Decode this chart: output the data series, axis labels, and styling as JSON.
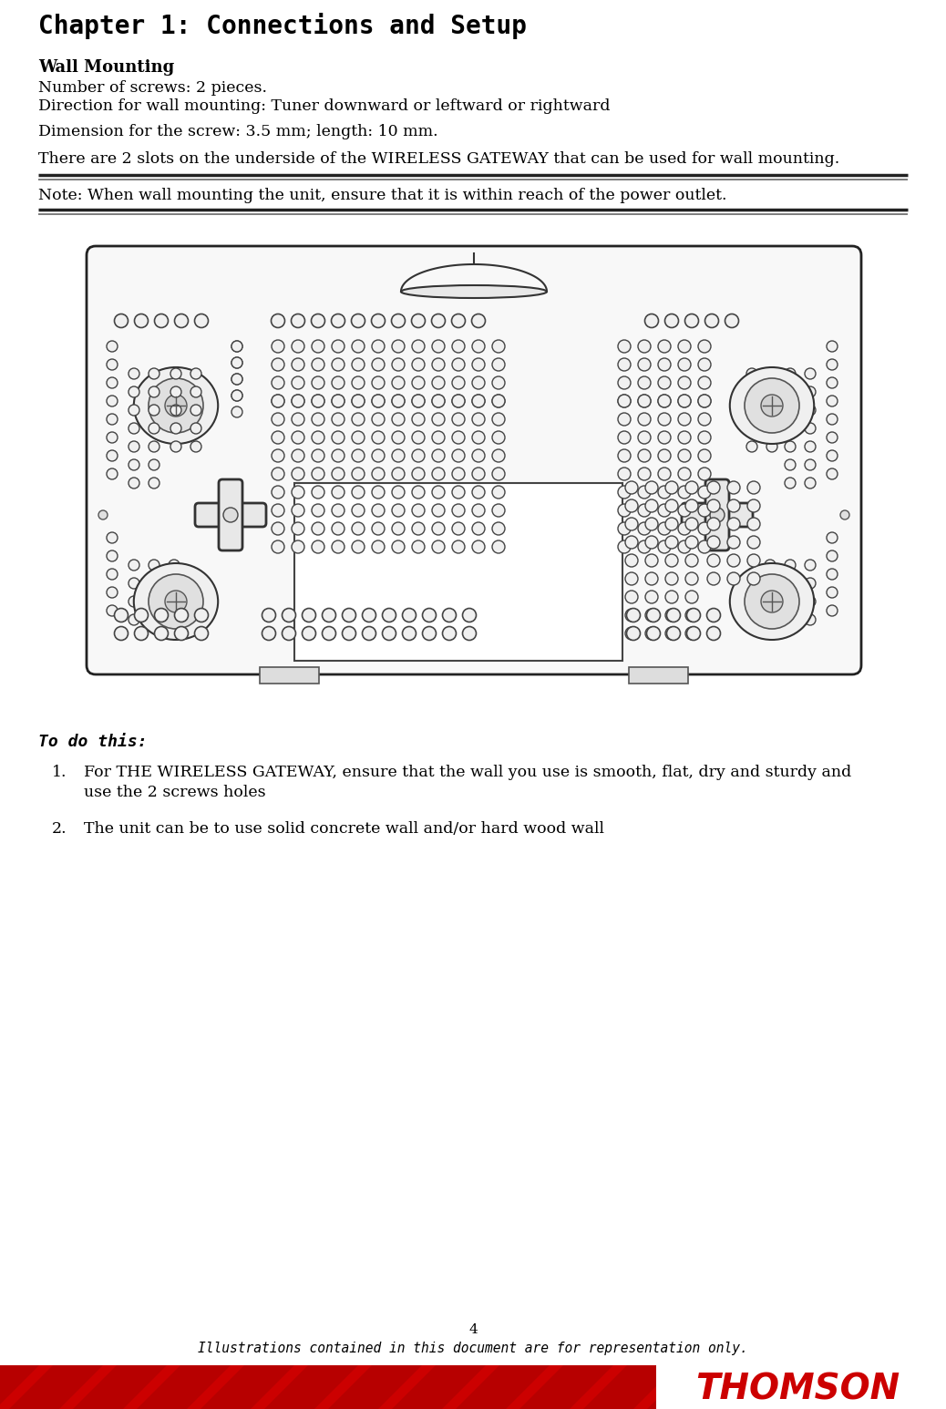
{
  "title": "Chapter 1: Connections and Setup",
  "section_heading": "Wall Mounting",
  "body_lines": [
    "Number of screws: 2 pieces.",
    "Direction for wall mounting: Tuner downward or leftward or rightward",
    "",
    "Dimension for the screw: 3.5 mm; length: 10 mm.",
    "",
    "There are 2 slots on the underside of the WIRELESS GATEWAY that can be used for wall mounting."
  ],
  "note_text": "Note: When wall mounting the unit, ensure that it is within reach of the power outlet.",
  "todo_heading": "To do this:",
  "todo_items": [
    "For THE WIRELESS GATEWAY, ensure that the wall you use is smooth, flat, dry and sturdy and\nuse the 2 screws holes",
    "The unit can be to use solid concrete wall and/or hard wood wall"
  ],
  "page_number": "4",
  "footer_italic": "Illustrations contained in this document are for representation only.",
  "thomson_text": "THOMSON",
  "bg_color": "#ffffff",
  "title_color": "#000000",
  "thomson_color": "#cc0000",
  "footer_bar_color": "#cc0000"
}
